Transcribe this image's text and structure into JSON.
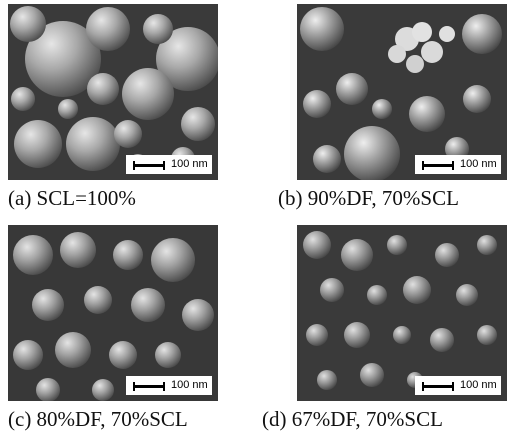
{
  "panels": [
    {
      "caption": "(a) SCL=100%",
      "scale_label": "100 nm"
    },
    {
      "caption": "(b) 90%DF, 70%SCL",
      "scale_label": "100 nm"
    },
    {
      "caption": "(c) 80%DF, 70%SCL",
      "scale_label": "100 nm"
    },
    {
      "caption": "(d) 67%DF, 70%SCL",
      "scale_label": "100 nm"
    }
  ]
}
